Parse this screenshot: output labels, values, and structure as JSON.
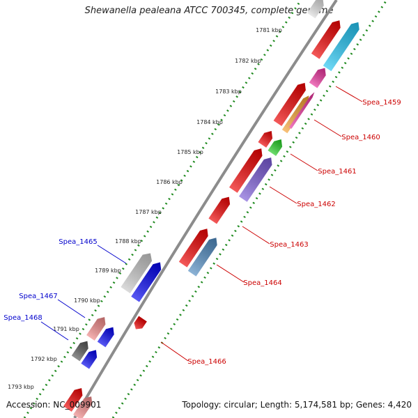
{
  "title": "Shewanella pealeana ATCC 700345, complete genome",
  "footer": {
    "accession": "Accession: NC_009901",
    "topology": "Topology: circular; Length: 5,174,581 bp; Genes: 4,420"
  },
  "ticks": [
    {
      "label": "1781 kbp"
    },
    {
      "label": "1782 kbp"
    },
    {
      "label": "1783 kbp"
    },
    {
      "label": "1784 kbp"
    },
    {
      "label": "1785 kbp"
    },
    {
      "label": "1786 kbp"
    },
    {
      "label": "1787 kbp"
    },
    {
      "label": "1788 kbp"
    },
    {
      "label": "1789 kbp"
    },
    {
      "label": "1790 kbp"
    },
    {
      "label": "1791 kbp"
    },
    {
      "label": "1792 kbp"
    },
    {
      "label": "1793 kbp"
    }
  ],
  "gene_labels": [
    {
      "name": "Spea_1459",
      "color": "#cc0000"
    },
    {
      "name": "Spea_1460",
      "color": "#cc0000"
    },
    {
      "name": "Spea_1461",
      "color": "#cc0000"
    },
    {
      "name": "Spea_1462",
      "color": "#cc0000"
    },
    {
      "name": "Spea_1463",
      "color": "#cc0000"
    },
    {
      "name": "Spea_1464",
      "color": "#cc0000"
    },
    {
      "name": "Spea_1465",
      "color": "#0000cc"
    },
    {
      "name": "Spea_1466",
      "color": "#cc0000"
    },
    {
      "name": "Spea_1467",
      "color": "#0000cc"
    },
    {
      "name": "Spea_1468",
      "color": "#0000cc"
    }
  ],
  "colors": {
    "backbone": "#8c8c8c",
    "dotted_track": "#1f8a1f",
    "red": "#ee0000",
    "blue": "#0000ee",
    "cyan": "#22c4f2",
    "magenta": "#e8309a",
    "orange": "#f5a030",
    "green": "#22cc22",
    "purple": "#7a5ad6",
    "steel": "#4f8ac0",
    "silver": "#c8c8c8",
    "pink": "#f08888",
    "gray": "#555555"
  }
}
